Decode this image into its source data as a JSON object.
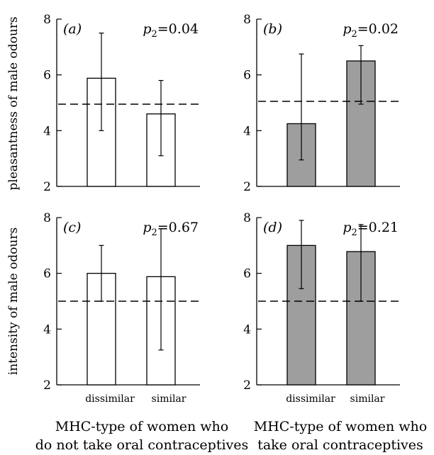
{
  "chart_data": [
    {
      "type": "bar",
      "panel": "(a)",
      "row": 0,
      "col": 0,
      "p_value_label": "p",
      "p_value_sub": "2",
      "p_value_rest": "=0.04",
      "p_value": 0.04,
      "categories": [
        "dissimilar",
        "similar"
      ],
      "values": [
        5.88,
        4.6
      ],
      "error_low": [
        4.0,
        3.1
      ],
      "error_high": [
        7.5,
        5.8
      ],
      "reference_line": 4.95,
      "fill": "#ffffff",
      "ylim": [
        2,
        8
      ],
      "yticks": [
        2,
        4,
        6,
        8
      ]
    },
    {
      "type": "bar",
      "panel": "(b)",
      "row": 0,
      "col": 1,
      "p_value_label": "p",
      "p_value_sub": "2",
      "p_value_rest": "=0.02",
      "p_value": 0.02,
      "categories": [
        "dissimilar",
        "similar"
      ],
      "values": [
        4.25,
        6.5
      ],
      "error_low": [
        2.95,
        4.95
      ],
      "error_high": [
        6.75,
        7.05
      ],
      "reference_line": 5.05,
      "fill": "#9e9e9e",
      "ylim": [
        2,
        8
      ],
      "yticks": [
        2,
        4,
        6,
        8
      ]
    },
    {
      "type": "bar",
      "panel": "(c)",
      "row": 1,
      "col": 0,
      "p_value_label": "p",
      "p_value_sub": "2",
      "p_value_rest": "=0.67",
      "p_value": 0.67,
      "categories": [
        "dissimilar",
        "similar"
      ],
      "values": [
        6.0,
        5.88
      ],
      "error_low": [
        5.0,
        3.25
      ],
      "error_high": [
        7.0,
        7.6
      ],
      "reference_line": 5.0,
      "fill": "#ffffff",
      "ylim": [
        2,
        8
      ],
      "yticks": [
        2,
        4,
        6,
        8
      ]
    },
    {
      "type": "bar",
      "panel": "(d)",
      "row": 1,
      "col": 1,
      "p_value_label": "p",
      "p_value_sub": "2",
      "p_value_rest": "=0.21",
      "p_value": 0.21,
      "categories": [
        "dissimilar",
        "similar"
      ],
      "values": [
        7.0,
        6.78
      ],
      "error_low": [
        5.45,
        5.0
      ],
      "error_high": [
        7.9,
        7.75
      ],
      "reference_line": 5.0,
      "fill": "#9e9e9e",
      "ylim": [
        2,
        8
      ],
      "yticks": [
        2,
        4,
        6,
        8
      ]
    }
  ],
  "ylabels": [
    "pleasantness of male odours",
    "intensity of male odours"
  ],
  "category_labels": [
    "dissimilar",
    "similar"
  ],
  "captions": [
    [
      "MHC-type of women who",
      "do not take oral contraceptives"
    ],
    [
      "MHC-type of women who",
      "take oral contraceptives"
    ]
  ],
  "colors": {
    "open_bar": "#ffffff",
    "shaded_bar": "#9e9e9e",
    "ink": "#000000"
  }
}
